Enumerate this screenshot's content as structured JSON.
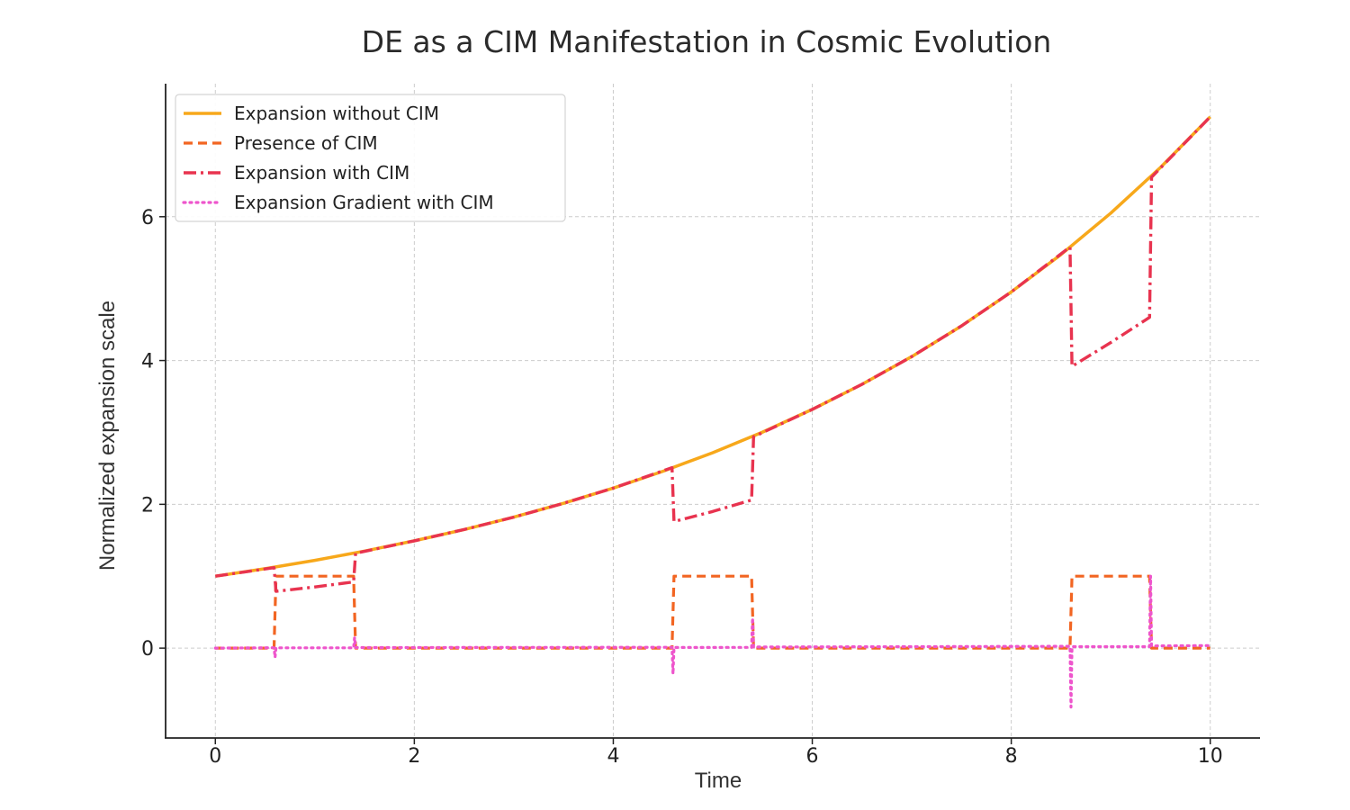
{
  "chart_data": {
    "type": "line",
    "title": "DE as a CIM Manifestation in Cosmic Evolution",
    "xlabel": "Time",
    "ylabel": "Normalized expansion scale",
    "xlim": [
      -0.5,
      10.5
    ],
    "ylim": [
      -1.25,
      7.85
    ],
    "xticks": [
      0,
      2,
      4,
      6,
      8,
      10
    ],
    "yticks": [
      0,
      2,
      4,
      6
    ],
    "grid": true,
    "legend_position": "top-left",
    "cim_intervals": [
      [
        0.6,
        1.4
      ],
      [
        4.6,
        5.4
      ],
      [
        8.6,
        9.4
      ]
    ],
    "series": [
      {
        "name": "Expansion without CIM",
        "color": "#f7a81b",
        "style": "solid",
        "x": [
          0,
          0.5,
          1,
          1.5,
          2,
          2.5,
          3,
          3.5,
          4,
          4.5,
          5,
          5.5,
          6,
          6.5,
          7,
          7.5,
          8,
          8.5,
          9,
          9.5,
          10
        ],
        "y": [
          1.0,
          1.105,
          1.221,
          1.35,
          1.492,
          1.649,
          1.822,
          2.014,
          2.226,
          2.46,
          2.718,
          3.004,
          3.32,
          3.669,
          4.055,
          4.482,
          4.953,
          5.474,
          6.05,
          6.686,
          7.389
        ]
      },
      {
        "name": "Presence of CIM",
        "color": "#f26522",
        "style": "dashed",
        "x": [
          0,
          0.59,
          0.61,
          1.39,
          1.41,
          4.59,
          4.61,
          5.39,
          5.41,
          8.59,
          8.61,
          9.39,
          9.41,
          10
        ],
        "y": [
          0,
          0,
          1,
          1,
          0,
          0,
          1,
          1,
          0,
          0,
          1,
          1,
          0,
          0
        ]
      },
      {
        "name": "Expansion with CIM",
        "color": "#e8334f",
        "style": "dashdot",
        "x": [
          0,
          0.3,
          0.59,
          0.61,
          1.0,
          1.39,
          1.41,
          2,
          2.5,
          3,
          3.5,
          4,
          4.59,
          4.61,
          5.0,
          5.39,
          5.41,
          6,
          6.5,
          7,
          7.5,
          8,
          8.59,
          8.61,
          9.0,
          9.39,
          9.41,
          10
        ],
        "y": [
          1.0,
          1.061,
          1.12,
          0.79,
          0.85,
          0.92,
          1.32,
          1.492,
          1.649,
          1.822,
          2.014,
          2.226,
          2.51,
          1.76,
          1.9,
          2.06,
          2.94,
          3.32,
          3.669,
          4.055,
          4.482,
          4.953,
          5.58,
          3.92,
          4.25,
          4.6,
          6.55,
          7.389
        ]
      },
      {
        "name": "Expansion Gradient with CIM",
        "color": "#ee55cc",
        "style": "dotted",
        "x": [
          0,
          0.59,
          0.6,
          0.61,
          1.39,
          1.4,
          1.41,
          4.59,
          4.6,
          4.61,
          5.39,
          5.4,
          5.41,
          8.59,
          8.6,
          8.61,
          9.39,
          9.4,
          9.41,
          10
        ],
        "y": [
          0.0,
          0.005,
          -0.13,
          0.004,
          0.004,
          0.15,
          0.008,
          0.012,
          -0.36,
          0.009,
          0.01,
          0.42,
          0.015,
          0.025,
          -0.82,
          0.02,
          0.02,
          1.0,
          0.03,
          0.035
        ]
      }
    ]
  }
}
